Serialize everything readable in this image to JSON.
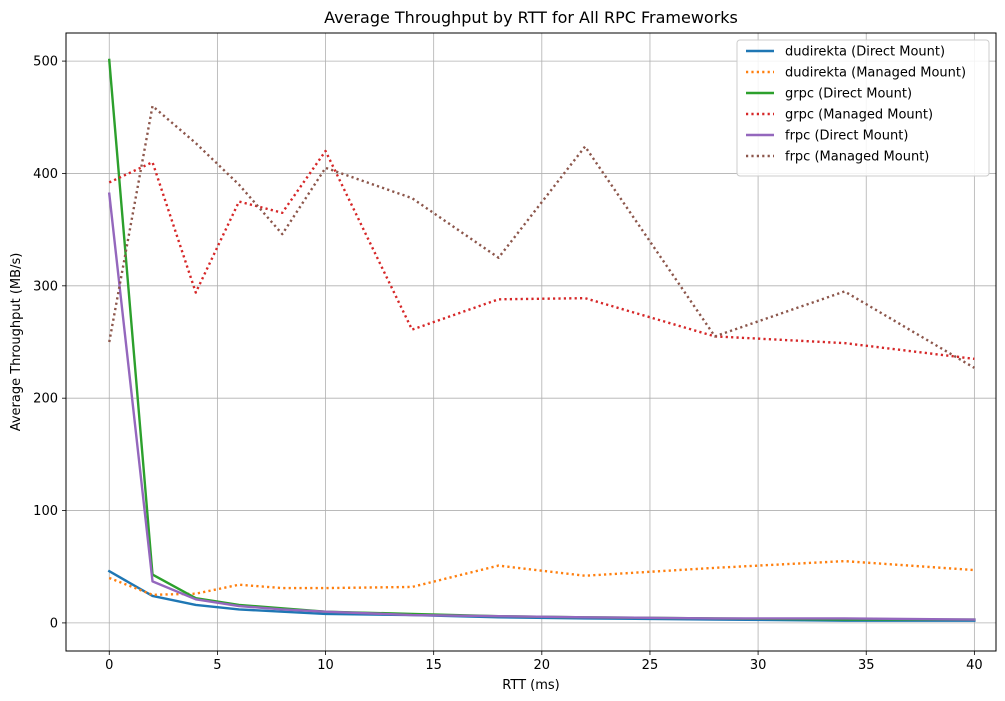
{
  "chart_data": {
    "type": "line",
    "title": "Average Throughput by RTT for All RPC Frameworks",
    "xlabel": "RTT (ms)",
    "ylabel": "Average Throughput (MB/s)",
    "xlim": [
      -2,
      41
    ],
    "ylim": [
      -25,
      525
    ],
    "xticks": [
      0,
      5,
      10,
      15,
      20,
      25,
      30,
      35,
      40
    ],
    "yticks": [
      0,
      100,
      200,
      300,
      400,
      500
    ],
    "grid": true,
    "legend_position": "top-right",
    "series": [
      {
        "name": "dudirekta (Direct Mount)",
        "color": "#1f77b4",
        "style": "solid",
        "x": [
          0,
          2,
          4,
          6,
          8,
          10,
          14,
          18,
          22,
          28,
          34,
          40
        ],
        "y": [
          46,
          24,
          16,
          12,
          10,
          8,
          7,
          5,
          4,
          3,
          2,
          2
        ]
      },
      {
        "name": "dudirekta (Managed Mount)",
        "color": "#ff7f0e",
        "style": "dotted",
        "x": [
          0,
          2,
          4,
          6,
          8,
          10,
          14,
          18,
          22,
          28,
          34,
          40
        ],
        "y": [
          40,
          25,
          26,
          34,
          31,
          31,
          32,
          51,
          42,
          49,
          55,
          47
        ]
      },
      {
        "name": "grpc (Direct Mount)",
        "color": "#2ca02c",
        "style": "solid",
        "x": [
          0,
          2,
          4,
          6,
          8,
          10,
          14,
          18,
          22,
          28,
          34,
          40
        ],
        "y": [
          501,
          43,
          22,
          16,
          13,
          10,
          8,
          6,
          5,
          4,
          3,
          3
        ]
      },
      {
        "name": "grpc (Managed Mount)",
        "color": "#d62728",
        "style": "dotted",
        "x": [
          0,
          2,
          4,
          6,
          8,
          10,
          14,
          18,
          22,
          28,
          34,
          40
        ],
        "y": [
          392,
          410,
          294,
          375,
          365,
          420,
          261,
          288,
          289,
          255,
          249,
          235
        ]
      },
      {
        "name": "frpc (Direct Mount)",
        "color": "#9467bd",
        "style": "solid",
        "x": [
          0,
          2,
          4,
          6,
          8,
          10,
          14,
          18,
          22,
          28,
          34,
          40
        ],
        "y": [
          382,
          37,
          21,
          15,
          12,
          10,
          7,
          6,
          5,
          4,
          4,
          3
        ]
      },
      {
        "name": "frpc (Managed Mount)",
        "color": "#8c564b",
        "style": "dotted",
        "x": [
          0,
          2,
          4,
          6,
          8,
          10,
          14,
          18,
          22,
          28,
          34,
          40
        ],
        "y": [
          250,
          460,
          427,
          390,
          346,
          405,
          378,
          325,
          424,
          255,
          295,
          227
        ]
      }
    ]
  }
}
